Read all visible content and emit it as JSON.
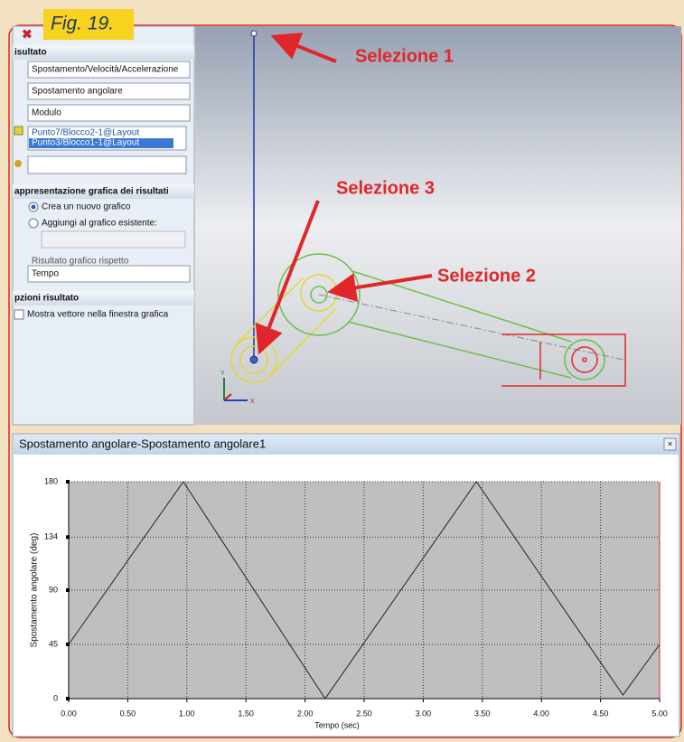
{
  "figure_label": "Fig. 19.",
  "panel": {
    "results_header": "isultato",
    "quantity": "Spostamento/Velocità/Accelerazione",
    "component": "Spostamento angolare",
    "mode": "Modulo",
    "selections": [
      "Punto7/Blocco2-1@Layout",
      "Punto3/Blocco1-1@Layout"
    ],
    "graph_header": "appresentazione grafica dei risultati",
    "new_graph": "Crea un nuovo grafico",
    "add_graph": "Aggiungi al grafico esistente:",
    "against_label": "Risultato grafico rispetto",
    "against": "Tempo",
    "options_header": "pzioni risultato",
    "show_vector": "Mostra vettore nella finestra grafica"
  },
  "annotations": [
    "Selezione 1",
    "Selezione 2",
    "Selezione 3"
  ],
  "triad": [
    "Y",
    "X"
  ],
  "chart_data": {
    "type": "line",
    "title": "Spostamento angolare-Spostamento angolare1",
    "x_label": "Tempo (sec)",
    "y_label": "Spostamento angolare (deg)",
    "x": [
      0,
      0.97,
      2.17,
      3.45,
      4.69,
      5.0
    ],
    "values": [
      45,
      180,
      0,
      180,
      3,
      45
    ],
    "color": "#222222",
    "xlim": [
      0,
      5
    ],
    "ylim": [
      0,
      180
    ],
    "xticks": [
      {
        "value": 0,
        "label": "0.00"
      },
      {
        "value": 0.5,
        "label": "0.50"
      },
      {
        "value": 1,
        "label": "1.00"
      },
      {
        "value": 1.5,
        "label": "1.50"
      },
      {
        "value": 2,
        "label": "2.00"
      },
      {
        "value": 2.5,
        "label": "2.50"
      },
      {
        "value": 3,
        "label": "3.00"
      },
      {
        "value": 3.5,
        "label": "3.50"
      },
      {
        "value": 4,
        "label": "4.00"
      },
      {
        "value": 4.5,
        "label": "4.50"
      },
      {
        "value": 5,
        "label": "5.00"
      }
    ],
    "yticks": [
      0,
      45,
      90,
      134,
      180
    ],
    "grid": true
  }
}
